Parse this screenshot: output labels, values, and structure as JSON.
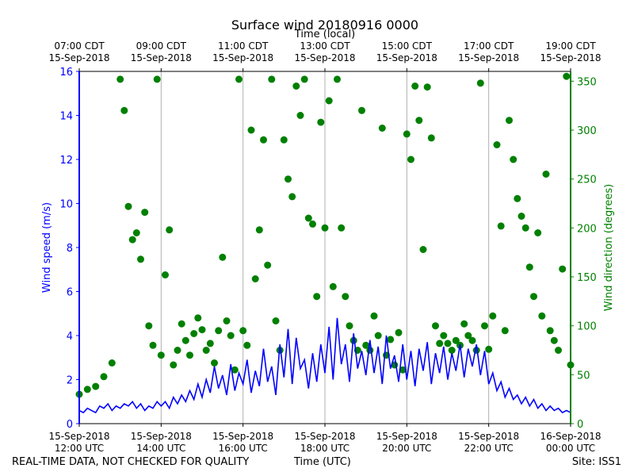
{
  "chart_data": {
    "type": "line",
    "title": "Surface wind 20180916 0000",
    "top_axis_label": "Time (local)",
    "xlabel": "Time (UTC)",
    "ylabel_left": "Wind speed (m/s)",
    "ylabel_right": "Wind direction (degrees)",
    "x_range_utc_hours": [
      12,
      24
    ],
    "ylim_left": [
      0,
      16
    ],
    "ylim_right": [
      0,
      360
    ],
    "grid": "vertical",
    "bottom_ticks": [
      {
        "hour": 12,
        "date": "15-Sep-2018",
        "time": "12:00 UTC"
      },
      {
        "hour": 14,
        "date": "15-Sep-2018",
        "time": "14:00 UTC"
      },
      {
        "hour": 16,
        "date": "15-Sep-2018",
        "time": "16:00 UTC"
      },
      {
        "hour": 18,
        "date": "15-Sep-2018",
        "time": "18:00 UTC"
      },
      {
        "hour": 20,
        "date": "15-Sep-2018",
        "time": "20:00 UTC"
      },
      {
        "hour": 22,
        "date": "15-Sep-2018",
        "time": "22:00 UTC"
      },
      {
        "hour": 24,
        "date": "16-Sep-2018",
        "time": "00:00 UTC"
      }
    ],
    "top_ticks": [
      {
        "hour": 12,
        "time": "07:00 CDT",
        "date": "15-Sep-2018"
      },
      {
        "hour": 14,
        "time": "09:00 CDT",
        "date": "15-Sep-2018"
      },
      {
        "hour": 16,
        "time": "11:00 CDT",
        "date": "15-Sep-2018"
      },
      {
        "hour": 18,
        "time": "13:00 CDT",
        "date": "15-Sep-2018"
      },
      {
        "hour": 20,
        "time": "15:00 CDT",
        "date": "15-Sep-2018"
      },
      {
        "hour": 22,
        "time": "17:00 CDT",
        "date": "15-Sep-2018"
      },
      {
        "hour": 24,
        "time": "19:00 CDT",
        "date": "15-Sep-2018"
      }
    ],
    "left_ticks": [
      0,
      2,
      4,
      6,
      8,
      10,
      12,
      14,
      16
    ],
    "right_ticks": [
      0,
      50,
      100,
      150,
      200,
      250,
      300,
      350
    ],
    "series": [
      {
        "kind": "line",
        "color": "#0000ff",
        "values_hour_speed": [
          [
            12.0,
            0.6
          ],
          [
            12.1,
            0.5
          ],
          [
            12.2,
            0.7
          ],
          [
            12.3,
            0.6
          ],
          [
            12.4,
            0.5
          ],
          [
            12.5,
            0.8
          ],
          [
            12.6,
            0.7
          ],
          [
            12.7,
            0.9
          ],
          [
            12.8,
            0.6
          ],
          [
            12.9,
            0.8
          ],
          [
            13.0,
            0.7
          ],
          [
            13.1,
            0.9
          ],
          [
            13.2,
            0.8
          ],
          [
            13.3,
            1.0
          ],
          [
            13.4,
            0.7
          ],
          [
            13.5,
            0.9
          ],
          [
            13.6,
            0.6
          ],
          [
            13.7,
            0.8
          ],
          [
            13.8,
            0.7
          ],
          [
            13.9,
            1.0
          ],
          [
            14.0,
            0.8
          ],
          [
            14.1,
            1.0
          ],
          [
            14.2,
            0.7
          ],
          [
            14.3,
            1.2
          ],
          [
            14.4,
            0.9
          ],
          [
            14.5,
            1.3
          ],
          [
            14.6,
            1.0
          ],
          [
            14.7,
            1.5
          ],
          [
            14.8,
            1.1
          ],
          [
            14.9,
            1.8
          ],
          [
            15.0,
            1.2
          ],
          [
            15.1,
            2.0
          ],
          [
            15.2,
            1.4
          ],
          [
            15.3,
            2.6
          ],
          [
            15.4,
            1.6
          ],
          [
            15.5,
            2.2
          ],
          [
            15.6,
            1.3
          ],
          [
            15.7,
            2.7
          ],
          [
            15.8,
            1.5
          ],
          [
            15.9,
            2.3
          ],
          [
            16.0,
            1.8
          ],
          [
            16.1,
            2.9
          ],
          [
            16.2,
            1.4
          ],
          [
            16.3,
            2.4
          ],
          [
            16.4,
            1.7
          ],
          [
            16.5,
            3.4
          ],
          [
            16.6,
            1.9
          ],
          [
            16.7,
            2.6
          ],
          [
            16.8,
            1.3
          ],
          [
            16.9,
            3.6
          ],
          [
            17.0,
            2.1
          ],
          [
            17.1,
            4.3
          ],
          [
            17.2,
            1.8
          ],
          [
            17.3,
            3.9
          ],
          [
            17.4,
            2.5
          ],
          [
            17.5,
            2.9
          ],
          [
            17.6,
            1.6
          ],
          [
            17.7,
            3.2
          ],
          [
            17.8,
            1.9
          ],
          [
            17.9,
            3.6
          ],
          [
            18.0,
            2.3
          ],
          [
            18.1,
            4.4
          ],
          [
            18.2,
            2.0
          ],
          [
            18.3,
            4.8
          ],
          [
            18.4,
            2.7
          ],
          [
            18.5,
            3.6
          ],
          [
            18.6,
            1.9
          ],
          [
            18.7,
            4.1
          ],
          [
            18.8,
            2.5
          ],
          [
            18.9,
            3.3
          ],
          [
            19.0,
            2.2
          ],
          [
            19.1,
            3.8
          ],
          [
            19.2,
            2.3
          ],
          [
            19.3,
            3.5
          ],
          [
            19.4,
            1.8
          ],
          [
            19.5,
            4.0
          ],
          [
            19.6,
            2.5
          ],
          [
            19.7,
            3.1
          ],
          [
            19.8,
            1.9
          ],
          [
            19.9,
            3.6
          ],
          [
            20.0,
            2.0
          ],
          [
            20.1,
            3.3
          ],
          [
            20.2,
            1.7
          ],
          [
            20.3,
            3.4
          ],
          [
            20.4,
            2.4
          ],
          [
            20.5,
            3.7
          ],
          [
            20.6,
            1.8
          ],
          [
            20.7,
            3.2
          ],
          [
            20.8,
            2.3
          ],
          [
            20.9,
            3.5
          ],
          [
            21.0,
            2.0
          ],
          [
            21.1,
            3.2
          ],
          [
            21.2,
            2.4
          ],
          [
            21.3,
            3.6
          ],
          [
            21.4,
            2.1
          ],
          [
            21.5,
            3.4
          ],
          [
            21.6,
            2.6
          ],
          [
            21.7,
            3.6
          ],
          [
            21.8,
            2.2
          ],
          [
            21.9,
            3.3
          ],
          [
            22.0,
            1.8
          ],
          [
            22.1,
            2.3
          ],
          [
            22.2,
            1.5
          ],
          [
            22.3,
            1.9
          ],
          [
            22.4,
            1.2
          ],
          [
            22.5,
            1.6
          ],
          [
            22.6,
            1.1
          ],
          [
            22.7,
            1.3
          ],
          [
            22.8,
            0.9
          ],
          [
            22.9,
            1.2
          ],
          [
            23.0,
            0.8
          ],
          [
            23.1,
            1.1
          ],
          [
            23.2,
            0.7
          ],
          [
            23.3,
            0.9
          ],
          [
            23.4,
            0.6
          ],
          [
            23.5,
            0.8
          ],
          [
            23.6,
            0.6
          ],
          [
            23.7,
            0.7
          ],
          [
            23.8,
            0.5
          ],
          [
            23.9,
            0.6
          ],
          [
            24.0,
            0.5
          ]
        ]
      },
      {
        "kind": "scatter",
        "color": "#008000",
        "values_hour_direction": [
          [
            12.0,
            30
          ],
          [
            12.2,
            35
          ],
          [
            12.4,
            38
          ],
          [
            12.6,
            48
          ],
          [
            12.8,
            62
          ],
          [
            13.0,
            352
          ],
          [
            13.1,
            320
          ],
          [
            13.2,
            222
          ],
          [
            13.3,
            188
          ],
          [
            13.4,
            195
          ],
          [
            13.5,
            168
          ],
          [
            13.6,
            216
          ],
          [
            13.7,
            100
          ],
          [
            13.8,
            80
          ],
          [
            13.9,
            352
          ],
          [
            14.0,
            70
          ],
          [
            14.1,
            152
          ],
          [
            14.2,
            198
          ],
          [
            14.3,
            60
          ],
          [
            14.4,
            75
          ],
          [
            14.5,
            102
          ],
          [
            14.6,
            85
          ],
          [
            14.7,
            70
          ],
          [
            14.8,
            92
          ],
          [
            14.9,
            108
          ],
          [
            15.0,
            96
          ],
          [
            15.1,
            75
          ],
          [
            15.2,
            82
          ],
          [
            15.3,
            62
          ],
          [
            15.4,
            95
          ],
          [
            15.5,
            170
          ],
          [
            15.6,
            105
          ],
          [
            15.7,
            90
          ],
          [
            15.8,
            55
          ],
          [
            15.9,
            352
          ],
          [
            16.0,
            95
          ],
          [
            16.1,
            80
          ],
          [
            16.2,
            300
          ],
          [
            16.3,
            148
          ],
          [
            16.4,
            198
          ],
          [
            16.5,
            290
          ],
          [
            16.6,
            162
          ],
          [
            16.7,
            352
          ],
          [
            16.8,
            105
          ],
          [
            16.9,
            75
          ],
          [
            17.0,
            290
          ],
          [
            17.1,
            250
          ],
          [
            17.2,
            232
          ],
          [
            17.3,
            345
          ],
          [
            17.4,
            315
          ],
          [
            17.5,
            352
          ],
          [
            17.6,
            210
          ],
          [
            17.7,
            204
          ],
          [
            17.8,
            130
          ],
          [
            17.9,
            308
          ],
          [
            18.0,
            200
          ],
          [
            18.1,
            330
          ],
          [
            18.2,
            140
          ],
          [
            18.3,
            352
          ],
          [
            18.4,
            200
          ],
          [
            18.5,
            130
          ],
          [
            18.6,
            100
          ],
          [
            18.7,
            85
          ],
          [
            18.8,
            75
          ],
          [
            18.9,
            320
          ],
          [
            19.0,
            80
          ],
          [
            19.1,
            75
          ],
          [
            19.2,
            110
          ],
          [
            19.3,
            90
          ],
          [
            19.4,
            302
          ],
          [
            19.5,
            70
          ],
          [
            19.6,
            86
          ],
          [
            19.7,
            60
          ],
          [
            19.8,
            93
          ],
          [
            19.9,
            55
          ],
          [
            20.0,
            296
          ],
          [
            20.1,
            270
          ],
          [
            20.2,
            345
          ],
          [
            20.3,
            310
          ],
          [
            20.4,
            178
          ],
          [
            20.5,
            344
          ],
          [
            20.6,
            292
          ],
          [
            20.7,
            100
          ],
          [
            20.8,
            82
          ],
          [
            20.9,
            90
          ],
          [
            21.0,
            82
          ],
          [
            21.1,
            75
          ],
          [
            21.2,
            85
          ],
          [
            21.3,
            80
          ],
          [
            21.4,
            102
          ],
          [
            21.5,
            90
          ],
          [
            21.6,
            85
          ],
          [
            21.7,
            75
          ],
          [
            21.8,
            348
          ],
          [
            21.9,
            100
          ],
          [
            22.0,
            76
          ],
          [
            22.1,
            110
          ],
          [
            22.2,
            285
          ],
          [
            22.3,
            202
          ],
          [
            22.4,
            95
          ],
          [
            22.5,
            310
          ],
          [
            22.6,
            270
          ],
          [
            22.7,
            230
          ],
          [
            22.8,
            212
          ],
          [
            22.9,
            200
          ],
          [
            23.0,
            160
          ],
          [
            23.1,
            130
          ],
          [
            23.2,
            195
          ],
          [
            23.3,
            110
          ],
          [
            23.4,
            255
          ],
          [
            23.5,
            95
          ],
          [
            23.6,
            85
          ],
          [
            23.7,
            75
          ],
          [
            23.8,
            158
          ],
          [
            23.9,
            355
          ],
          [
            24.0,
            60
          ]
        ]
      }
    ],
    "colors": {
      "left_axis": "#0000ff",
      "right_axis": "#008000",
      "grid": "#b0b0b0"
    }
  },
  "footer": {
    "left": "REAL-TIME DATA, NOT CHECKED FOR QUALITY",
    "center": "Time (UTC)",
    "right": "Site: ISS1"
  }
}
